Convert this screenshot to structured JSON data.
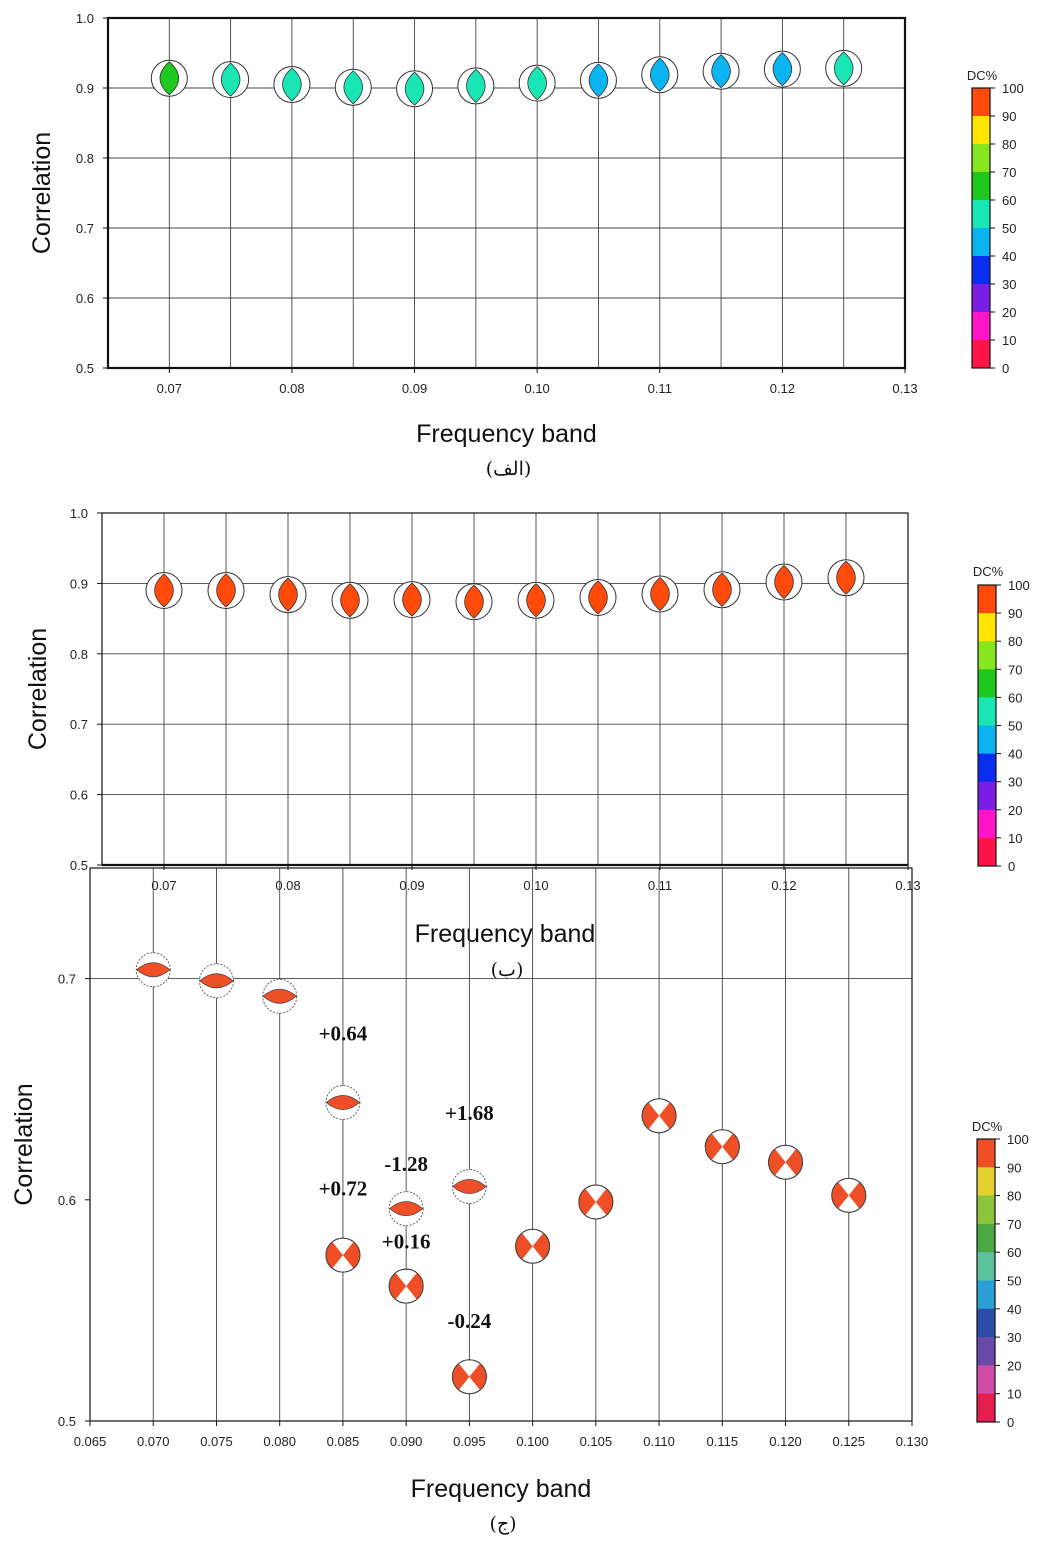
{
  "colorbar": {
    "title": "DC%",
    "ticks": [
      "100",
      "90",
      "80",
      "70",
      "60",
      "50",
      "40",
      "30",
      "20",
      "10",
      "0"
    ],
    "bands_top_to_bottom": [
      "#ff4a0a",
      "#ffe600",
      "#88e61e",
      "#1ec81e",
      "#19e6b4",
      "#0ab4f0",
      "#0a2ef0",
      "#7a1ee6",
      "#ff14c8",
      "#ff1446"
    ],
    "bands_top_to_bottom_muted": [
      "#ee4f26",
      "#e3cf2e",
      "#8cc43c",
      "#4ca844",
      "#5cc29e",
      "#2a9fd6",
      "#2c4ea6",
      "#6a4aa8",
      "#d04aa8",
      "#e61e50"
    ]
  },
  "chart_data": [
    {
      "type": "scatter",
      "panel_label": "(الف)",
      "xlabel": "Frequency band",
      "ylabel": "Correlation",
      "xlim": [
        0.065,
        0.13
      ],
      "ylim": [
        0.5,
        1.0
      ],
      "xticks": [
        "0.07",
        "0.08",
        "0.09",
        "0.10",
        "0.11",
        "0.12",
        "0.13"
      ],
      "xtick_values": [
        0.07,
        0.08,
        0.09,
        0.1,
        0.11,
        0.12,
        0.13
      ],
      "yticks": [
        "0.5",
        "0.6",
        "0.7",
        "0.8",
        "0.9",
        "1.0"
      ],
      "ytick_values": [
        0.5,
        0.6,
        0.7,
        0.8,
        0.9,
        1.0
      ],
      "vgrid": [
        0.07,
        0.075,
        0.08,
        0.085,
        0.09,
        0.095,
        0.1,
        0.105,
        0.11,
        0.115,
        0.12,
        0.125
      ],
      "hgrid": [
        0.6,
        0.7,
        0.8,
        0.9
      ],
      "mechanism": "lens",
      "points": [
        {
          "x": 0.07,
          "y": 0.914,
          "dc": 65
        },
        {
          "x": 0.075,
          "y": 0.912,
          "dc": 55
        },
        {
          "x": 0.08,
          "y": 0.905,
          "dc": 55
        },
        {
          "x": 0.085,
          "y": 0.901,
          "dc": 55
        },
        {
          "x": 0.09,
          "y": 0.899,
          "dc": 55
        },
        {
          "x": 0.095,
          "y": 0.903,
          "dc": 55
        },
        {
          "x": 0.1,
          "y": 0.907,
          "dc": 55
        },
        {
          "x": 0.105,
          "y": 0.911,
          "dc": 45
        },
        {
          "x": 0.11,
          "y": 0.919,
          "dc": 45
        },
        {
          "x": 0.115,
          "y": 0.924,
          "dc": 45
        },
        {
          "x": 0.12,
          "y": 0.927,
          "dc": 45
        },
        {
          "x": 0.125,
          "y": 0.928,
          "dc": 55
        }
      ]
    },
    {
      "type": "scatter",
      "panel_label": "(ب)",
      "xlabel": "Frequency band",
      "ylabel": "Correlation",
      "xlim": [
        0.065,
        0.13
      ],
      "ylim": [
        0.5,
        1.0
      ],
      "xticks": [
        "0.07",
        "0.08",
        "0.09",
        "0.10",
        "0.11",
        "0.12",
        "0.13"
      ],
      "xtick_values": [
        0.07,
        0.08,
        0.09,
        0.1,
        0.11,
        0.12,
        0.13
      ],
      "yticks": [
        "0.5",
        "0.6",
        "0.7",
        "0.8",
        "0.9",
        "1.0"
      ],
      "ytick_values": [
        0.5,
        0.6,
        0.7,
        0.8,
        0.9,
        1.0
      ],
      "vgrid": [
        0.07,
        0.075,
        0.08,
        0.085,
        0.09,
        0.095,
        0.1,
        0.105,
        0.11,
        0.115,
        0.12,
        0.125
      ],
      "hgrid": [
        0.6,
        0.7,
        0.8,
        0.9
      ],
      "mechanism": "lens",
      "points": [
        {
          "x": 0.07,
          "y": 0.89,
          "dc": 95
        },
        {
          "x": 0.075,
          "y": 0.89,
          "dc": 95
        },
        {
          "x": 0.08,
          "y": 0.884,
          "dc": 95
        },
        {
          "x": 0.085,
          "y": 0.876,
          "dc": 95
        },
        {
          "x": 0.09,
          "y": 0.877,
          "dc": 95
        },
        {
          "x": 0.095,
          "y": 0.874,
          "dc": 95
        },
        {
          "x": 0.1,
          "y": 0.876,
          "dc": 95
        },
        {
          "x": 0.105,
          "y": 0.88,
          "dc": 95
        },
        {
          "x": 0.11,
          "y": 0.885,
          "dc": 95
        },
        {
          "x": 0.115,
          "y": 0.891,
          "dc": 95
        },
        {
          "x": 0.12,
          "y": 0.902,
          "dc": 95
        },
        {
          "x": 0.125,
          "y": 0.908,
          "dc": 95
        }
      ]
    },
    {
      "type": "scatter",
      "panel_label": "(ج)",
      "xlabel": "Frequency band",
      "ylabel": "Correlation",
      "xlim": [
        0.065,
        0.13
      ],
      "ylim": [
        0.5,
        0.75
      ],
      "xticks": [
        "0.065",
        "0.070",
        "0.075",
        "0.080",
        "0.085",
        "0.090",
        "0.095",
        "0.100",
        "0.105",
        "0.110",
        "0.115",
        "0.120",
        "0.125",
        "0.130"
      ],
      "xtick_values": [
        0.065,
        0.07,
        0.075,
        0.08,
        0.085,
        0.09,
        0.095,
        0.1,
        0.105,
        0.11,
        0.115,
        0.12,
        0.125,
        0.13
      ],
      "yticks": [
        "0.5",
        "0.6",
        "0.7"
      ],
      "ytick_values": [
        0.5,
        0.6,
        0.7
      ],
      "vgrid": [
        0.07,
        0.075,
        0.08,
        0.085,
        0.09,
        0.095,
        0.1,
        0.105,
        0.11,
        0.115,
        0.12,
        0.125
      ],
      "hgrid": [
        0.7
      ],
      "points": [
        {
          "x": 0.07,
          "y": 0.704,
          "dc": 95,
          "mechanism": "hlens"
        },
        {
          "x": 0.075,
          "y": 0.699,
          "dc": 95,
          "mechanism": "hlens"
        },
        {
          "x": 0.08,
          "y": 0.692,
          "dc": 95,
          "mechanism": "hlens"
        },
        {
          "x": 0.085,
          "y": 0.644,
          "dc": 95,
          "mechanism": "hlens"
        },
        {
          "x": 0.085,
          "y": 0.575,
          "dc": 95,
          "mechanism": "bowtie"
        },
        {
          "x": 0.09,
          "y": 0.596,
          "dc": 95,
          "mechanism": "hlens"
        },
        {
          "x": 0.09,
          "y": 0.561,
          "dc": 95,
          "mechanism": "bowtie"
        },
        {
          "x": 0.095,
          "y": 0.606,
          "dc": 95,
          "mechanism": "hlens"
        },
        {
          "x": 0.095,
          "y": 0.52,
          "dc": 95,
          "mechanism": "bowtie"
        },
        {
          "x": 0.1,
          "y": 0.579,
          "dc": 95,
          "mechanism": "bowtie"
        },
        {
          "x": 0.105,
          "y": 0.599,
          "dc": 95,
          "mechanism": "bowtie"
        },
        {
          "x": 0.11,
          "y": 0.638,
          "dc": 95,
          "mechanism": "bowtie"
        },
        {
          "x": 0.115,
          "y": 0.624,
          "dc": 95,
          "mechanism": "bowtie"
        },
        {
          "x": 0.12,
          "y": 0.617,
          "dc": 95,
          "mechanism": "bowtie"
        },
        {
          "x": 0.125,
          "y": 0.602,
          "dc": 95,
          "mechanism": "bowtie"
        }
      ],
      "annotations": [
        {
          "text": "+0.64",
          "x": 0.085,
          "y": 0.672
        },
        {
          "text": "+0.72",
          "x": 0.085,
          "y": 0.602
        },
        {
          "text": "-1.28",
          "x": 0.09,
          "y": 0.613
        },
        {
          "text": "+0.16",
          "x": 0.09,
          "y": 0.578
        },
        {
          "text": "+1.68",
          "x": 0.095,
          "y": 0.636
        },
        {
          "text": "-0.24",
          "x": 0.095,
          "y": 0.542
        }
      ]
    }
  ]
}
